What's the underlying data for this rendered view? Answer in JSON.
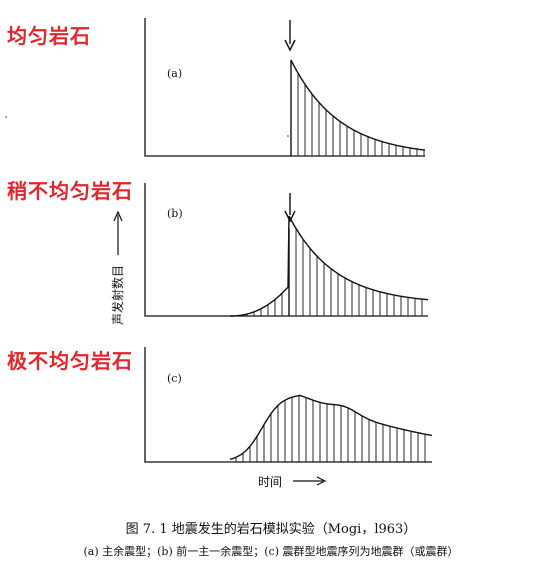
{
  "labels": {
    "homogeneous": "均匀岩石",
    "slightly": "稍不均匀岩石",
    "highly": "极不均匀岩石"
  },
  "panels": [
    {
      "tag": "(a)",
      "type": "mainshock-aftershock"
    },
    {
      "tag": "(b)",
      "type": "foreshock-mainshock-aftershock"
    },
    {
      "tag": "(c)",
      "type": "swarm"
    }
  ],
  "axes": {
    "ylabel": "声发射数目",
    "xlabel": "时间"
  },
  "caption": {
    "title": "图 7. 1    地震发生的岩石模拟实验（Mogi，l963）",
    "subtitle": "(a) 主余震型；(b) 前一主一余震型；(c) 震群型地震序列为地震群（或震群）"
  },
  "colors": {
    "label_red": "#e5252a",
    "ink": "#111111"
  }
}
